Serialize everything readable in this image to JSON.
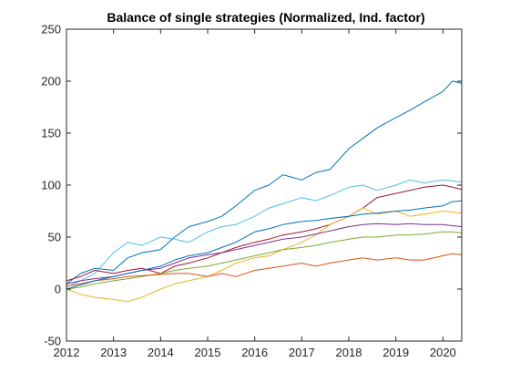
{
  "chart_data": {
    "type": "line",
    "title": "Balance of single strategies (Normalized, Ind. factor)",
    "xlabel": "",
    "ylabel": "",
    "xlim": [
      2012,
      2020.4
    ],
    "ylim": [
      -50,
      250
    ],
    "xticks": [
      "2012",
      "2013",
      "2014",
      "2015",
      "2016",
      "2017",
      "2018",
      "2019",
      "2020"
    ],
    "yticks": [
      "-50",
      "0",
      "50",
      "100",
      "150",
      "200",
      "250"
    ],
    "grid": false,
    "legend": "none",
    "series": [
      {
        "color": "#0072BD",
        "x": [
          2012.0,
          2012.3,
          2012.6,
          2013.0,
          2013.3,
          2013.6,
          2014.0,
          2014.3,
          2014.6,
          2015.0,
          2015.3,
          2015.6,
          2016.0,
          2016.3,
          2016.6,
          2017.0,
          2017.3,
          2017.6,
          2018.0,
          2018.3,
          2018.6,
          2019.0,
          2019.3,
          2019.6,
          2020.0,
          2020.2,
          2020.4
        ],
        "y": [
          5,
          15,
          20,
          18,
          30,
          35,
          38,
          50,
          60,
          65,
          70,
          80,
          95,
          100,
          110,
          105,
          112,
          115,
          135,
          145,
          155,
          165,
          172,
          180,
          190,
          200,
          198
        ]
      },
      {
        "color": "#4DBEEE",
        "x": [
          2012.0,
          2012.3,
          2012.6,
          2013.0,
          2013.3,
          2013.6,
          2014.0,
          2014.3,
          2014.6,
          2015.0,
          2015.3,
          2015.6,
          2016.0,
          2016.3,
          2016.6,
          2017.0,
          2017.3,
          2017.6,
          2018.0,
          2018.3,
          2018.6,
          2019.0,
          2019.3,
          2019.6,
          2020.0,
          2020.2,
          2020.4
        ],
        "y": [
          2,
          8,
          15,
          35,
          45,
          42,
          50,
          48,
          45,
          55,
          60,
          62,
          70,
          78,
          82,
          88,
          85,
          90,
          98,
          100,
          95,
          100,
          105,
          102,
          105,
          104,
          103
        ]
      },
      {
        "color": "#A2142F",
        "x": [
          2012.0,
          2012.3,
          2012.6,
          2013.0,
          2013.3,
          2013.6,
          2014.0,
          2014.3,
          2014.6,
          2015.0,
          2015.3,
          2015.6,
          2016.0,
          2016.3,
          2016.6,
          2017.0,
          2017.3,
          2017.6,
          2018.0,
          2018.3,
          2018.6,
          2019.0,
          2019.3,
          2019.6,
          2020.0,
          2020.2,
          2020.4
        ],
        "y": [
          8,
          12,
          18,
          15,
          18,
          20,
          15,
          22,
          25,
          30,
          35,
          40,
          45,
          48,
          52,
          55,
          58,
          62,
          70,
          78,
          88,
          92,
          95,
          98,
          100,
          98,
          96
        ]
      },
      {
        "color": "#EDB120",
        "x": [
          2012.0,
          2012.3,
          2012.6,
          2013.0,
          2013.3,
          2013.6,
          2014.0,
          2014.3,
          2014.6,
          2015.0,
          2015.3,
          2015.6,
          2016.0,
          2016.3,
          2016.6,
          2017.0,
          2017.3,
          2017.6,
          2018.0,
          2018.3,
          2018.6,
          2019.0,
          2019.3,
          2019.6,
          2020.0,
          2020.2,
          2020.4
        ],
        "y": [
          0,
          -5,
          -8,
          -10,
          -12,
          -8,
          0,
          5,
          8,
          12,
          18,
          25,
          30,
          32,
          38,
          45,
          52,
          62,
          70,
          78,
          72,
          75,
          70,
          72,
          75,
          74,
          73
        ]
      },
      {
        "color": "#7E2F8E",
        "x": [
          2012.0,
          2012.3,
          2012.6,
          2013.0,
          2013.3,
          2013.6,
          2014.0,
          2014.3,
          2014.6,
          2015.0,
          2015.3,
          2015.6,
          2016.0,
          2016.3,
          2016.6,
          2017.0,
          2017.3,
          2017.6,
          2018.0,
          2018.3,
          2018.6,
          2019.0,
          2019.3,
          2019.6,
          2020.0,
          2020.2,
          2020.4
        ],
        "y": [
          5,
          8,
          10,
          12,
          15,
          18,
          20,
          25,
          30,
          33,
          35,
          38,
          42,
          45,
          48,
          50,
          53,
          56,
          60,
          62,
          63,
          62,
          63,
          62,
          62,
          61,
          60
        ]
      },
      {
        "color": "#77AC30",
        "x": [
          2012.0,
          2012.3,
          2012.6,
          2013.0,
          2013.3,
          2013.6,
          2014.0,
          2014.3,
          2014.6,
          2015.0,
          2015.3,
          2015.6,
          2016.0,
          2016.3,
          2016.6,
          2017.0,
          2017.3,
          2017.6,
          2018.0,
          2018.3,
          2018.6,
          2019.0,
          2019.3,
          2019.6,
          2020.0,
          2020.2,
          2020.4
        ],
        "y": [
          0,
          2,
          5,
          8,
          10,
          12,
          15,
          18,
          20,
          22,
          25,
          28,
          32,
          35,
          38,
          40,
          42,
          45,
          48,
          50,
          50,
          52,
          52,
          53,
          55,
          55,
          54
        ]
      },
      {
        "color": "#D95319",
        "x": [
          2012.0,
          2012.3,
          2012.6,
          2013.0,
          2013.3,
          2013.6,
          2014.0,
          2014.3,
          2014.6,
          2015.0,
          2015.3,
          2015.6,
          2016.0,
          2016.3,
          2016.6,
          2017.0,
          2017.3,
          2017.6,
          2018.0,
          2018.3,
          2018.6,
          2019.0,
          2019.3,
          2019.6,
          2020.0,
          2020.2,
          2020.4
        ],
        "y": [
          3,
          5,
          8,
          10,
          12,
          13,
          14,
          15,
          15,
          12,
          15,
          12,
          18,
          20,
          22,
          25,
          22,
          25,
          28,
          30,
          28,
          30,
          28,
          28,
          32,
          34,
          33
        ]
      },
      {
        "color": "#0072BD",
        "x": [
          2012.0,
          2012.3,
          2012.6,
          2013.0,
          2013.3,
          2013.6,
          2014.0,
          2014.3,
          2014.6,
          2015.0,
          2015.3,
          2015.6,
          2016.0,
          2016.3,
          2016.6,
          2017.0,
          2017.3,
          2017.6,
          2018.0,
          2018.3,
          2018.6,
          2019.0,
          2019.3,
          2019.6,
          2020.0,
          2020.2,
          2020.4
        ],
        "y": [
          0,
          4,
          8,
          12,
          15,
          18,
          22,
          28,
          32,
          35,
          40,
          45,
          55,
          58,
          62,
          65,
          66,
          68,
          70,
          72,
          73,
          75,
          76,
          78,
          80,
          84,
          85
        ]
      }
    ]
  }
}
